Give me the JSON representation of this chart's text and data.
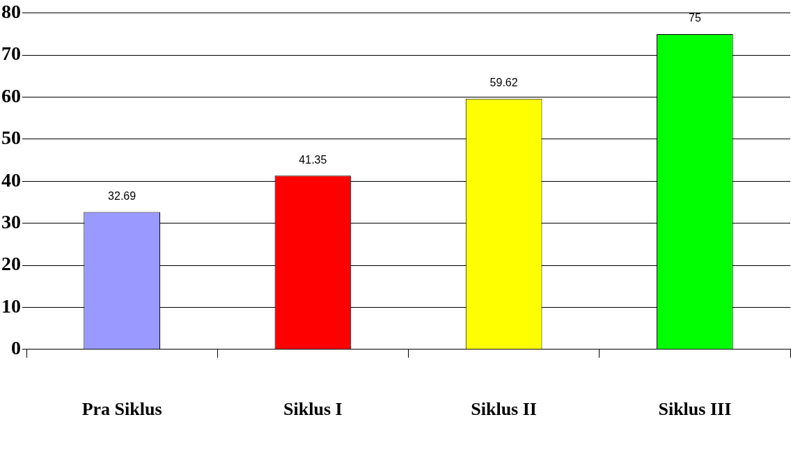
{
  "chart_data": {
    "type": "bar",
    "categories": [
      "Pra Siklus",
      "Siklus I",
      "Siklus II",
      "Siklus III"
    ],
    "values": [
      32.69,
      41.35,
      59.62,
      75
    ],
    "colors": [
      "#9999ff",
      "#ff0000",
      "#ffff00",
      "#00ff00"
    ],
    "ylim": [
      0,
      80
    ],
    "yticks": [
      0,
      10,
      20,
      30,
      40,
      50,
      60,
      70,
      80
    ],
    "grid": "y",
    "legend": false,
    "data_labels": true
  }
}
